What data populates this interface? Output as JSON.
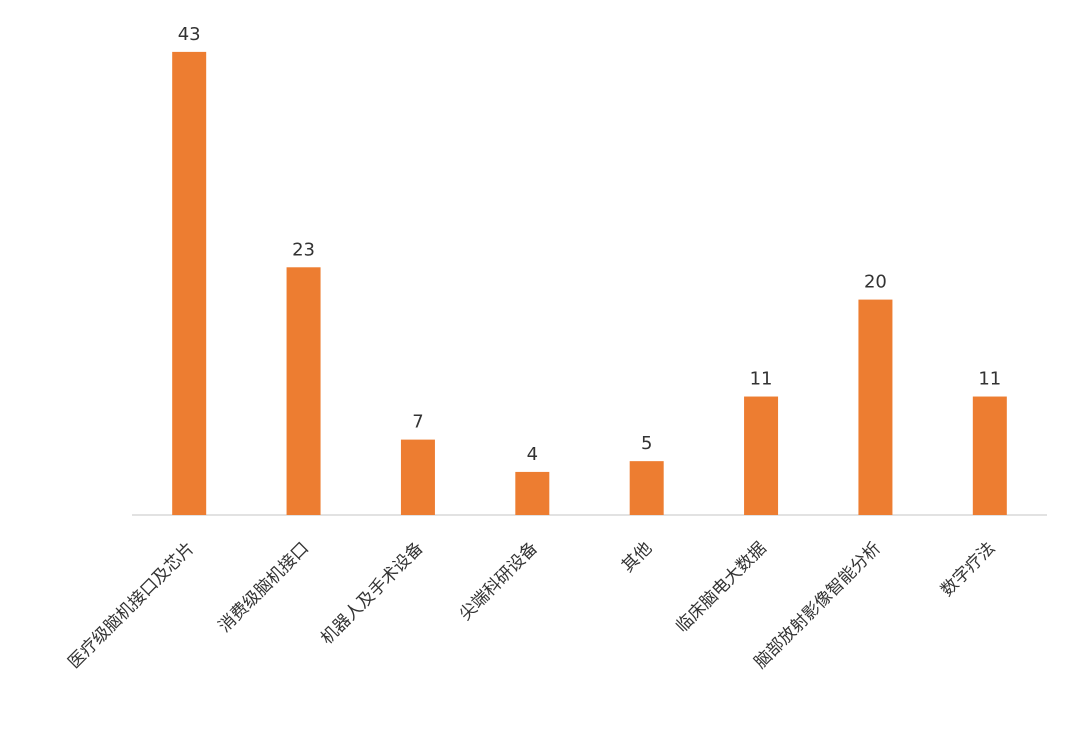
{
  "chart_data": {
    "type": "bar",
    "categories": [
      "医疗级脑机接口及芯片",
      "消费级脑机接口",
      "机器人及手术设备",
      "尖端科研设备",
      "其他",
      "临床脑电大数据",
      "脑部放射影像智能分析",
      "数字疗法"
    ],
    "values": [
      43,
      23,
      7,
      4,
      5,
      11,
      20,
      11
    ],
    "color": "#ed7d31",
    "ylim": [
      0,
      45
    ]
  }
}
